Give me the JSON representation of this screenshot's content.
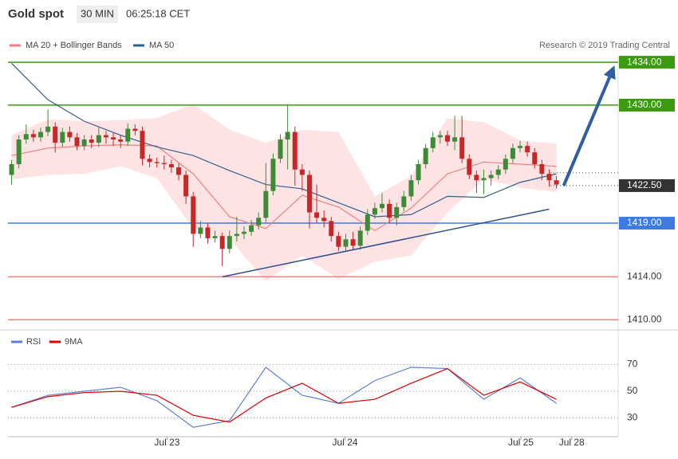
{
  "chart_data": [
    {
      "type": "candlestick",
      "title": "Gold spot",
      "interval": "30 MIN",
      "time": "06:25:18 CET",
      "source": "Research © 2019 Trading Central",
      "up_color": "#3d8b37",
      "down_color": "#c62828",
      "xlim": [
        -0.5,
        83.5
      ],
      "ylim": [
        1409.2,
        1434.6
      ],
      "x": [
        0,
        1,
        2,
        3,
        4,
        5,
        6,
        7,
        8,
        9,
        10,
        11,
        12,
        13,
        14,
        15,
        16,
        17,
        18,
        19,
        20,
        21,
        22,
        23,
        24,
        25,
        26,
        27,
        28,
        29,
        30,
        31,
        32,
        33,
        34,
        35,
        36,
        37,
        38,
        39,
        40,
        41,
        42,
        43,
        44,
        45,
        46,
        47,
        48,
        49,
        50,
        51,
        52,
        53,
        54,
        55,
        56,
        57,
        58,
        59,
        60,
        61,
        62,
        63,
        64,
        65,
        66,
        67,
        68,
        69,
        70,
        71,
        72,
        73,
        74,
        75
      ],
      "open": [
        1423.5,
        1424.5,
        1426.8,
        1427.3,
        1427.0,
        1427.5,
        1428.0,
        1426.5,
        1427.5,
        1427.0,
        1426.2,
        1426.8,
        1426.5,
        1427.2,
        1427.0,
        1426.8,
        1426.6,
        1427.8,
        1427.6,
        1425.0,
        1424.7,
        1424.6,
        1424.5,
        1424.2,
        1423.5,
        1421.5,
        1418.0,
        1418.6,
        1417.6,
        1417.8,
        1416.6,
        1417.8,
        1418.0,
        1418.2,
        1418.8,
        1419.5,
        1422.0,
        1425.0,
        1426.8,
        1427.5,
        1424.0,
        1423.5,
        1420.0,
        1419.5,
        1419.2,
        1417.8,
        1416.8,
        1417.5,
        1416.9,
        1418.3,
        1419.8,
        1420.4,
        1420.8,
        1419.5,
        1420.5,
        1421.5,
        1423.0,
        1424.5,
        1426.0,
        1427.0,
        1427.2,
        1426.6,
        1427.0,
        1425.0,
        1423.5,
        1423.0,
        1423.2,
        1423.5,
        1424.0,
        1425.0,
        1426.0,
        1426.2,
        1425.6,
        1424.5,
        1423.6,
        1423.0
      ],
      "high": [
        1424.9,
        1427.2,
        1428.2,
        1427.7,
        1427.9,
        1429.6,
        1428.4,
        1427.9,
        1428.0,
        1427.4,
        1427.2,
        1427.2,
        1428.0,
        1427.6,
        1427.4,
        1427.2,
        1428.3,
        1428.2,
        1428.0,
        1425.4,
        1425.1,
        1425.3,
        1424.9,
        1424.6,
        1423.9,
        1421.9,
        1419.2,
        1419.0,
        1418.3,
        1418.1,
        1418.3,
        1419.6,
        1418.7,
        1419.3,
        1420.0,
        1424.6,
        1425.5,
        1427.3,
        1430.1,
        1428.0,
        1424.5,
        1423.9,
        1422.6,
        1420.2,
        1419.6,
        1418.2,
        1418.0,
        1418.2,
        1418.7,
        1420.3,
        1420.9,
        1421.8,
        1421.2,
        1420.9,
        1422.0,
        1423.5,
        1424.9,
        1426.4,
        1427.5,
        1427.6,
        1427.6,
        1429.0,
        1429.0,
        1425.4,
        1423.9,
        1424.0,
        1423.9,
        1424.4,
        1425.4,
        1426.4,
        1426.7,
        1426.6,
        1426.0,
        1424.9,
        1424.0,
        1423.4
      ],
      "low": [
        1422.6,
        1424.1,
        1426.4,
        1426.6,
        1426.6,
        1427.1,
        1425.6,
        1426.1,
        1426.6,
        1425.8,
        1425.8,
        1426.0,
        1426.1,
        1426.4,
        1426.2,
        1426.0,
        1426.2,
        1427.2,
        1424.4,
        1424.2,
        1424.2,
        1424.0,
        1423.7,
        1423.0,
        1420.8,
        1416.8,
        1417.6,
        1417.1,
        1417.2,
        1415.0,
        1416.2,
        1417.3,
        1417.5,
        1417.8,
        1418.4,
        1419.1,
        1421.6,
        1424.6,
        1424.0,
        1422.5,
        1422.0,
        1418.5,
        1419.0,
        1418.6,
        1417.3,
        1416.4,
        1416.4,
        1416.5,
        1416.5,
        1417.9,
        1419.4,
        1420.0,
        1419.0,
        1418.8,
        1420.1,
        1421.1,
        1422.6,
        1424.1,
        1425.6,
        1426.4,
        1426.2,
        1425.8,
        1424.6,
        1423.1,
        1421.8,
        1421.7,
        1422.5,
        1423.1,
        1423.6,
        1424.6,
        1425.6,
        1425.2,
        1424.1,
        1423.0,
        1422.4,
        1422.2
      ],
      "close": [
        1424.5,
        1426.8,
        1427.3,
        1427.0,
        1427.5,
        1428.0,
        1426.5,
        1427.5,
        1427.0,
        1426.2,
        1426.8,
        1426.5,
        1427.2,
        1427.0,
        1426.8,
        1426.6,
        1427.8,
        1427.6,
        1425.0,
        1424.7,
        1424.6,
        1424.5,
        1424.2,
        1423.5,
        1421.5,
        1418.0,
        1418.6,
        1417.6,
        1417.8,
        1416.6,
        1417.8,
        1418.0,
        1418.2,
        1418.8,
        1419.5,
        1422.0,
        1425.0,
        1426.8,
        1427.5,
        1424.0,
        1423.5,
        1420.0,
        1419.5,
        1419.2,
        1417.8,
        1416.8,
        1417.5,
        1416.9,
        1418.3,
        1419.8,
        1420.4,
        1420.8,
        1419.5,
        1420.5,
        1421.5,
        1423.0,
        1424.5,
        1426.0,
        1427.0,
        1427.2,
        1426.6,
        1427.0,
        1425.0,
        1423.5,
        1423.0,
        1423.2,
        1423.5,
        1424.0,
        1425.0,
        1426.0,
        1426.2,
        1425.6,
        1424.5,
        1423.6,
        1423.0,
        1422.6
      ],
      "lines": [
        {
          "name": "MA 20 + Bollinger Bands",
          "color": "#f08080",
          "band_color": "#fde3e3",
          "x": [
            0,
            5,
            10,
            15,
            20,
            25,
            30,
            35,
            40,
            45,
            50,
            55,
            60,
            65,
            70,
            75
          ],
          "values": [
            1425.3,
            1426.0,
            1426.2,
            1426.3,
            1426.2,
            1423.6,
            1419.6,
            1418.5,
            1421.6,
            1420.5,
            1418.3,
            1420.4,
            1423.6,
            1424.7,
            1424.5,
            1424.3
          ],
          "upper": [
            1427.2,
            1428.7,
            1428.5,
            1428.6,
            1428.8,
            1430.1,
            1427.7,
            1426.5,
            1427.7,
            1427.5,
            1421.5,
            1423.4,
            1428.8,
            1428.4,
            1426.7,
            1426.4
          ],
          "lower": [
            1423.1,
            1423.5,
            1423.6,
            1424.3,
            1423.2,
            1418.5,
            1417.5,
            1413.6,
            1416.0,
            1413.8,
            1415.4,
            1416.0,
            1420.0,
            1423.1,
            1422.3,
            1421.9
          ]
        },
        {
          "name": "MA 50",
          "color": "#2f5f8f",
          "x": [
            0,
            5,
            10,
            15,
            20,
            25,
            30,
            35,
            40,
            45,
            50,
            55,
            60,
            65,
            70,
            75
          ],
          "values": [
            1433.9,
            1430.5,
            1428.5,
            1427.2,
            1426.1,
            1425.3,
            1423.9,
            1422.6,
            1422.2,
            1420.9,
            1419.6,
            1419.8,
            1421.5,
            1421.4,
            1422.8,
            1423.6
          ]
        }
      ],
      "levels": [
        {
          "value": 1434,
          "label": "1434.00",
          "color": "#3b9a0f",
          "style": "box"
        },
        {
          "value": 1430,
          "label": "1430.00",
          "color": "#3b9a0f",
          "style": "box"
        },
        {
          "value": 1423.7,
          "color": "#555555",
          "style": "dotted"
        },
        {
          "value": 1422.5,
          "label": "1422.50",
          "color": "#333333",
          "style": "dotted-box"
        },
        {
          "value": 1419,
          "label": "1419.00",
          "color": "#3d7be0",
          "style": "box"
        },
        {
          "value": 1414,
          "label": "1414.00",
          "color": "#f08080",
          "style": "plain"
        },
        {
          "value": 1410,
          "label": "1410.00",
          "color": "#f08080",
          "style": "plain"
        }
      ],
      "trendline": {
        "color": "#2f4f8f",
        "x": [
          29,
          74
        ],
        "y": [
          1414,
          1420.3
        ]
      },
      "arrow": {
        "color": "#2f5fa0",
        "x": [
          76,
          83
        ],
        "y": [
          1422.5,
          1433.7
        ]
      }
    },
    {
      "type": "line",
      "xlim": [
        -0.5,
        83.5
      ],
      "ylim": [
        16,
        89.4
      ],
      "yticks": [
        30,
        50,
        70
      ],
      "grid": true,
      "xticks": [
        {
          "value": 21.4,
          "label": "Jul 23"
        },
        {
          "value": 45.9,
          "label": "Jul 24"
        },
        {
          "value": 70.1,
          "label": "Jul 25"
        },
        {
          "value": 77.1,
          "label": "Jul 28"
        }
      ],
      "x": [
        0,
        5,
        10,
        15,
        20,
        25,
        30,
        35,
        40,
        45,
        50,
        55,
        60,
        65,
        70,
        75
      ],
      "series": [
        {
          "name": "RSI",
          "color": "#5b7fd6",
          "values": [
            38,
            47,
            50,
            53,
            43,
            23,
            28,
            68,
            47,
            41,
            58,
            68,
            67,
            44,
            60,
            41
          ]
        },
        {
          "name": "9MA",
          "color": "#e00000",
          "values": [
            38,
            46,
            49,
            50,
            47,
            32,
            27,
            45,
            56,
            41,
            44,
            56,
            67,
            47,
            57,
            44
          ]
        }
      ]
    }
  ]
}
